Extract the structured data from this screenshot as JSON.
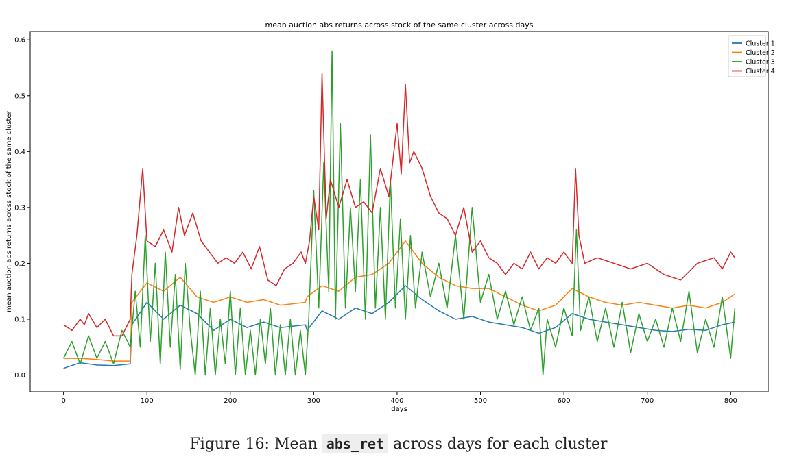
{
  "chart_data": {
    "type": "line",
    "title": "mean auction abs returns across stock of the same cluster across days",
    "xlabel": "days",
    "ylabel": "mean auction abs returns across stock of the same cluster",
    "xlim": [
      -40,
      845
    ],
    "ylim": [
      -0.03,
      0.615
    ],
    "xticks": [
      0,
      100,
      200,
      300,
      400,
      500,
      600,
      700,
      800
    ],
    "yticks": [
      0.0,
      0.1,
      0.2,
      0.3,
      0.4,
      0.5,
      0.6
    ],
    "ytick_labels": [
      "0.0",
      "0.1",
      "0.2",
      "0.3",
      "0.4",
      "0.5",
      "0.6"
    ],
    "grid": false,
    "legend": "top-right",
    "series": [
      {
        "name": "Cluster 1",
        "color": "#1f77b4",
        "x": [
          0,
          20,
          40,
          60,
          80,
          82,
          100,
          120,
          140,
          160,
          180,
          200,
          220,
          240,
          260,
          290,
          292,
          310,
          330,
          350,
          370,
          390,
          410,
          430,
          450,
          470,
          490,
          510,
          530,
          550,
          570,
          590,
          610,
          630,
          650,
          670,
          690,
          710,
          730,
          750,
          770,
          790,
          805
        ],
        "values": [
          0.012,
          0.022,
          0.018,
          0.017,
          0.02,
          0.09,
          0.13,
          0.1,
          0.125,
          0.11,
          0.08,
          0.1,
          0.085,
          0.095,
          0.085,
          0.09,
          0.08,
          0.115,
          0.1,
          0.12,
          0.11,
          0.13,
          0.16,
          0.135,
          0.115,
          0.1,
          0.105,
          0.095,
          0.09,
          0.085,
          0.075,
          0.085,
          0.11,
          0.1,
          0.095,
          0.09,
          0.085,
          0.08,
          0.078,
          0.082,
          0.08,
          0.09,
          0.095
        ]
      },
      {
        "name": "Cluster 2",
        "color": "#ff7f0e",
        "x": [
          0,
          20,
          40,
          60,
          80,
          82,
          100,
          120,
          140,
          160,
          180,
          200,
          220,
          240,
          260,
          290,
          292,
          310,
          330,
          350,
          370,
          390,
          410,
          430,
          450,
          470,
          490,
          510,
          530,
          550,
          570,
          590,
          610,
          630,
          650,
          670,
          690,
          710,
          730,
          750,
          770,
          790,
          805
        ],
        "values": [
          0.03,
          0.03,
          0.028,
          0.025,
          0.025,
          0.13,
          0.165,
          0.15,
          0.175,
          0.14,
          0.13,
          0.14,
          0.13,
          0.135,
          0.125,
          0.13,
          0.14,
          0.16,
          0.15,
          0.175,
          0.18,
          0.2,
          0.24,
          0.2,
          0.175,
          0.16,
          0.155,
          0.155,
          0.14,
          0.125,
          0.115,
          0.125,
          0.155,
          0.14,
          0.13,
          0.125,
          0.13,
          0.125,
          0.12,
          0.125,
          0.12,
          0.13,
          0.145
        ]
      },
      {
        "name": "Cluster 3",
        "color": "#2ca02c",
        "x": [
          0,
          10,
          20,
          30,
          40,
          50,
          60,
          70,
          80,
          86,
          92,
          98,
          104,
          110,
          116,
          122,
          128,
          134,
          140,
          146,
          152,
          158,
          164,
          170,
          176,
          182,
          188,
          194,
          200,
          206,
          212,
          218,
          224,
          230,
          236,
          242,
          248,
          254,
          260,
          266,
          272,
          278,
          284,
          290,
          294,
          300,
          306,
          312,
          318,
          322,
          326,
          332,
          338,
          344,
          350,
          356,
          362,
          368,
          374,
          380,
          386,
          392,
          398,
          404,
          410,
          416,
          422,
          430,
          440,
          450,
          460,
          470,
          480,
          490,
          500,
          510,
          520,
          530,
          540,
          550,
          560,
          570,
          575,
          580,
          590,
          600,
          610,
          615,
          620,
          630,
          640,
          650,
          660,
          670,
          680,
          690,
          700,
          710,
          720,
          730,
          740,
          750,
          760,
          770,
          780,
          790,
          800,
          805
        ],
        "values": [
          0.03,
          0.06,
          0.02,
          0.07,
          0.03,
          0.06,
          0.02,
          0.08,
          0.05,
          0.15,
          0.05,
          0.25,
          0.06,
          0.2,
          0.02,
          0.22,
          0.05,
          0.18,
          0.01,
          0.2,
          0.08,
          0.0,
          0.15,
          0.0,
          0.12,
          0.0,
          0.1,
          0.02,
          0.15,
          0.0,
          0.12,
          0.0,
          0.08,
          0.0,
          0.1,
          0.02,
          0.12,
          0.0,
          0.09,
          0.0,
          0.1,
          0.0,
          0.08,
          0.0,
          0.1,
          0.33,
          0.12,
          0.38,
          0.15,
          0.58,
          0.1,
          0.45,
          0.12,
          0.3,
          0.15,
          0.35,
          0.1,
          0.43,
          0.12,
          0.3,
          0.1,
          0.35,
          0.12,
          0.28,
          0.1,
          0.25,
          0.12,
          0.22,
          0.14,
          0.2,
          0.12,
          0.25,
          0.1,
          0.3,
          0.13,
          0.18,
          0.1,
          0.15,
          0.09,
          0.14,
          0.08,
          0.12,
          0.0,
          0.1,
          0.05,
          0.12,
          0.07,
          0.26,
          0.08,
          0.14,
          0.06,
          0.12,
          0.05,
          0.13,
          0.04,
          0.11,
          0.06,
          0.1,
          0.05,
          0.12,
          0.06,
          0.15,
          0.04,
          0.1,
          0.05,
          0.14,
          0.03,
          0.12
        ]
      },
      {
        "name": "Cluster 4",
        "color": "#d62728",
        "x": [
          0,
          10,
          20,
          25,
          30,
          40,
          50,
          60,
          70,
          80,
          82,
          88,
          95,
          100,
          110,
          120,
          130,
          138,
          145,
          155,
          165,
          175,
          185,
          195,
          205,
          215,
          225,
          235,
          245,
          255,
          265,
          275,
          285,
          290,
          295,
          300,
          306,
          310,
          315,
          320,
          330,
          340,
          350,
          360,
          370,
          380,
          390,
          400,
          405,
          410,
          415,
          420,
          430,
          440,
          450,
          460,
          470,
          480,
          490,
          500,
          510,
          520,
          530,
          540,
          550,
          560,
          570,
          580,
          590,
          600,
          610,
          614,
          618,
          625,
          640,
          660,
          680,
          700,
          720,
          740,
          760,
          780,
          790,
          800,
          805
        ],
        "values": [
          0.09,
          0.08,
          0.1,
          0.09,
          0.11,
          0.085,
          0.1,
          0.07,
          0.07,
          0.1,
          0.18,
          0.25,
          0.37,
          0.24,
          0.23,
          0.26,
          0.22,
          0.3,
          0.25,
          0.29,
          0.24,
          0.22,
          0.2,
          0.21,
          0.2,
          0.22,
          0.19,
          0.23,
          0.17,
          0.16,
          0.19,
          0.2,
          0.22,
          0.2,
          0.24,
          0.32,
          0.26,
          0.54,
          0.28,
          0.35,
          0.3,
          0.35,
          0.3,
          0.31,
          0.29,
          0.37,
          0.32,
          0.45,
          0.36,
          0.52,
          0.38,
          0.4,
          0.37,
          0.32,
          0.29,
          0.28,
          0.25,
          0.3,
          0.22,
          0.24,
          0.21,
          0.2,
          0.18,
          0.2,
          0.19,
          0.22,
          0.19,
          0.21,
          0.2,
          0.22,
          0.2,
          0.37,
          0.25,
          0.2,
          0.21,
          0.2,
          0.19,
          0.2,
          0.18,
          0.17,
          0.2,
          0.21,
          0.19,
          0.22,
          0.21
        ]
      }
    ]
  },
  "caption": {
    "prefix": "Figure 16: Mean",
    "code": "abs_ret",
    "suffix": "across days for each cluster"
  }
}
